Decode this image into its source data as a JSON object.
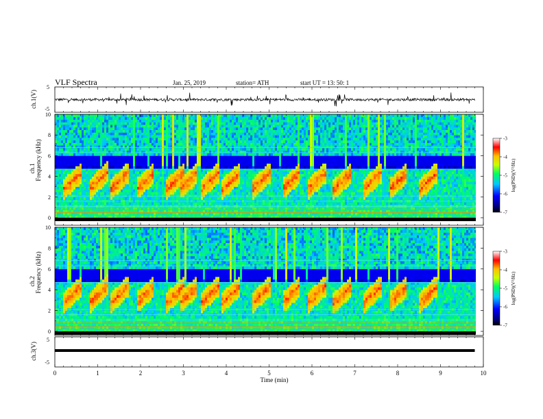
{
  "header": {
    "title": "VLF  Spectra",
    "date": "Jan. 25, 2019",
    "station": "station= ATH",
    "start": "start  UT  =   13: 50: 1"
  },
  "chart_data": [
    {
      "type": "line",
      "panel": "ch1-waveform",
      "ylabel": "ch.1(V)",
      "y_ticks": [
        "5",
        "-5"
      ],
      "ylim": [
        -5,
        5
      ],
      "xlim": [
        0,
        10
      ],
      "series": [
        {
          "x": [
            0,
            9.8
          ],
          "y": [
            0,
            0
          ]
        }
      ]
    },
    {
      "type": "heatmap",
      "panel": "ch1-spectrogram",
      "ylabel": "ch.1\nFrequency (kHz)",
      "ylabel_lines": [
        "ch.1",
        "Frequency (kHz)"
      ],
      "y_ticks": [
        "0",
        "2",
        "4",
        "6",
        "8",
        "10"
      ],
      "ylim": [
        0,
        10
      ],
      "xlim": [
        0,
        10
      ],
      "colorbar": {
        "label": "log(PSD)(V²/Hz)",
        "ticks": [
          "-3",
          "-4",
          "-5",
          "-6",
          "-7"
        ],
        "range": [
          -7,
          -3
        ]
      },
      "chorus_bursts_min": [
        0.3,
        0.9,
        1.4,
        2.0,
        2.7,
        3.0,
        3.5,
        4.0,
        4.7,
        5.4,
        6.0,
        6.6,
        7.3,
        7.9,
        8.6
      ]
    },
    {
      "type": "heatmap",
      "panel": "ch2-spectrogram",
      "ylabel": "ch.2\nFrequency (kHz)",
      "ylabel_lines": [
        "ch.2",
        "Frequency (kHz)"
      ],
      "y_ticks": [
        "0",
        "2",
        "4",
        "6",
        "8",
        "10"
      ],
      "ylim": [
        0,
        10
      ],
      "xlim": [
        0,
        10
      ],
      "colorbar": {
        "label": "log(PSD)(V²/Hz)",
        "ticks": [
          "-3",
          "-4",
          "-5",
          "-6",
          "-7"
        ],
        "range": [
          -7,
          -3
        ]
      },
      "chorus_bursts_min": [
        0.3,
        0.9,
        1.4,
        2.0,
        2.7,
        3.0,
        3.5,
        4.0,
        4.7,
        5.4,
        6.0,
        6.6,
        7.3,
        7.9,
        8.6
      ]
    },
    {
      "type": "line",
      "panel": "ch3-waveform",
      "ylabel": "ch.3(V)",
      "y_ticks": [
        "5",
        "-5"
      ],
      "ylim": [
        -5,
        5
      ],
      "xlim": [
        0,
        10
      ],
      "xlabel": "Time  (min)",
      "x_ticks": [
        "0",
        "1",
        "2",
        "3",
        "4",
        "5",
        "6",
        "7",
        "8",
        "9",
        "10"
      ],
      "series": [
        {
          "x": [
            0,
            9.8
          ],
          "y": [
            0,
            0
          ]
        }
      ]
    }
  ]
}
